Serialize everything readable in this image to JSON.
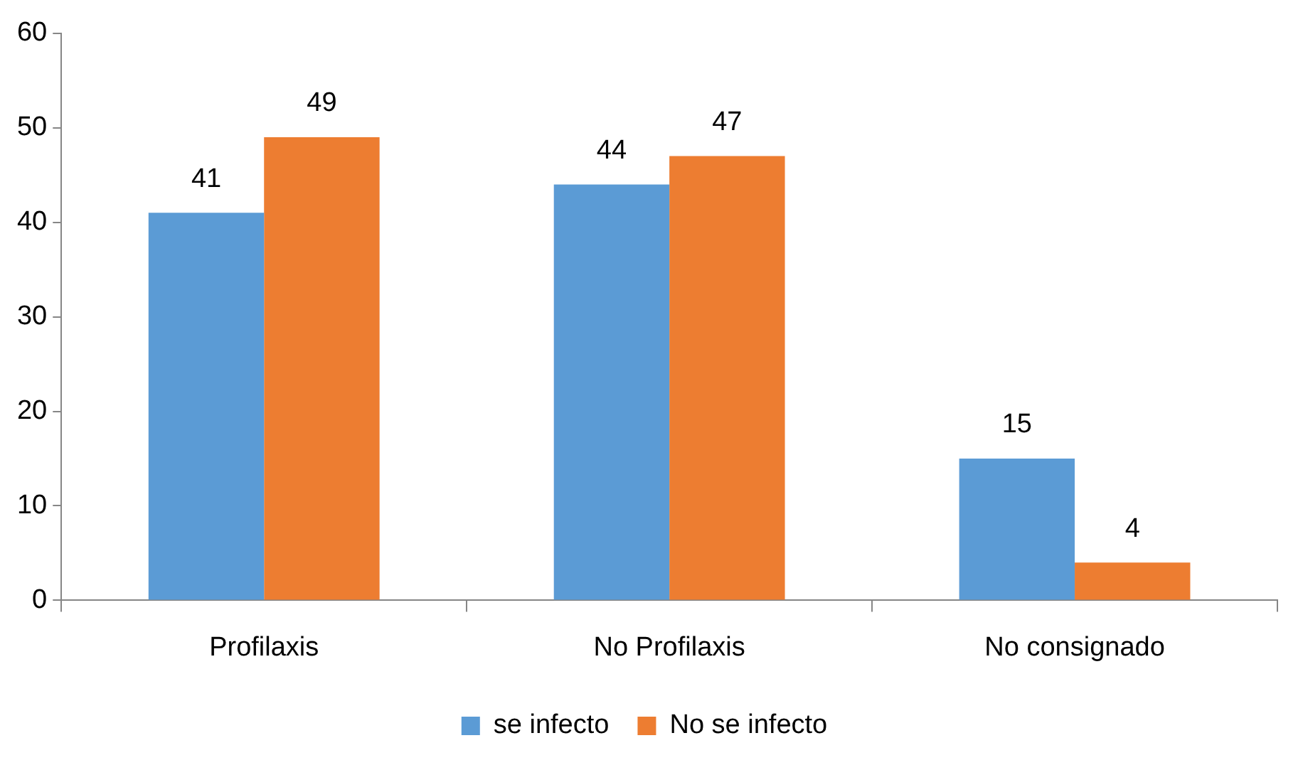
{
  "chart_data": {
    "type": "bar",
    "categories": [
      "Profilaxis",
      "No Profilaxis",
      "No consignado"
    ],
    "series": [
      {
        "name": "se infecto",
        "color": "#5b9bd5",
        "values": [
          41,
          44,
          15
        ]
      },
      {
        "name": "No se infecto",
        "color": "#ed7d31",
        "values": [
          49,
          47,
          4
        ]
      }
    ],
    "ylim": [
      0,
      60
    ],
    "yticks": [
      0,
      10,
      20,
      30,
      40,
      50,
      60
    ],
    "grid": false,
    "legend": "bottom",
    "data_labels": true
  }
}
